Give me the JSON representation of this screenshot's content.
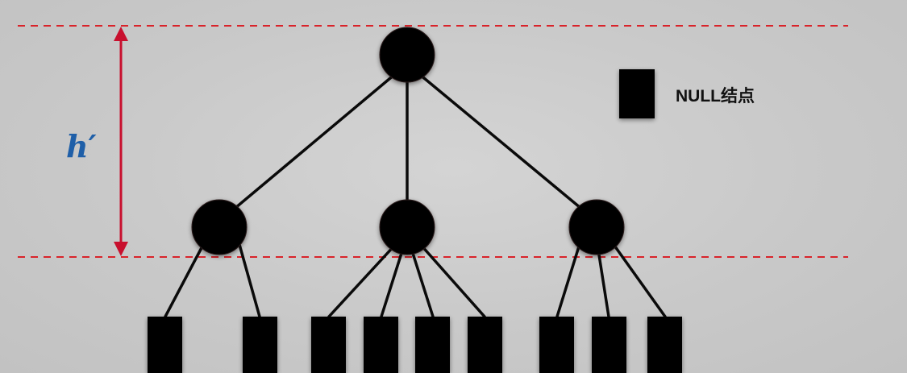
{
  "legend": {
    "label": "NULL结点",
    "swatch_icon": "null-node-square"
  },
  "height_marker": {
    "label": "h′",
    "color": "#1f5fa8"
  },
  "colors": {
    "dashed_guide": "#d9232a",
    "height_arrow": "#c8102e",
    "node_fill": "#060606",
    "edge": "#0a0a0a"
  },
  "tree": {
    "levels": 2,
    "root_children": 3,
    "null_children_per_node": [
      2,
      4,
      3
    ]
  }
}
